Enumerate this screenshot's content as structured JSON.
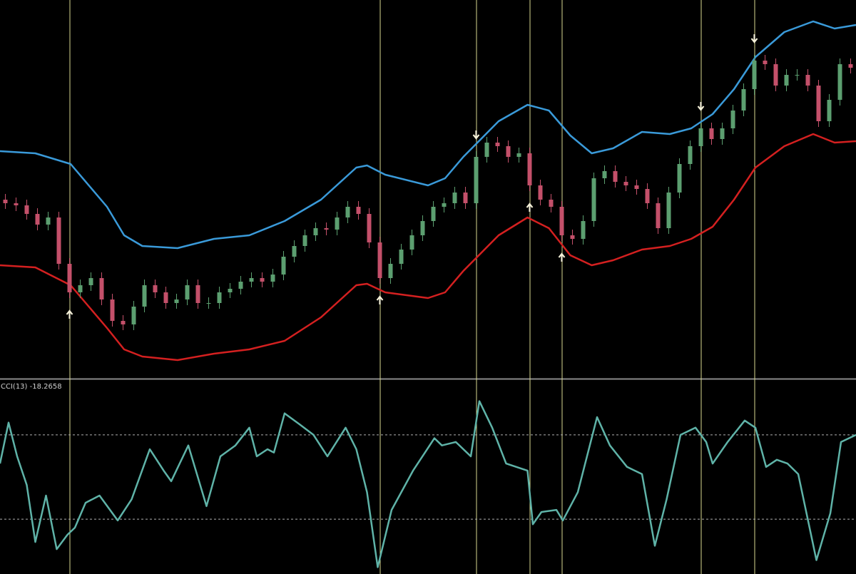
{
  "chart_data": [
    {
      "type": "candlestick",
      "xlim": [
        -0.5,
        79.5
      ],
      "ylim": [
        0,
        530
      ],
      "up_color": "#5c9f70",
      "down_color": "#c4506a",
      "open": [
        250,
        245,
        242,
        230,
        215,
        225,
        160,
        120,
        130,
        140,
        110,
        80,
        75,
        100,
        130,
        120,
        105,
        110,
        130,
        105,
        105,
        120,
        125,
        135,
        140,
        135,
        145,
        170,
        185,
        200,
        210,
        208,
        225,
        240,
        230,
        190,
        140,
        160,
        180,
        200,
        220,
        240,
        245,
        260,
        245,
        310,
        330,
        325,
        310,
        315,
        270,
        250,
        240,
        200,
        195,
        220,
        280,
        290,
        275,
        270,
        265,
        245,
        210,
        260,
        300,
        325,
        350,
        335,
        350,
        375,
        405,
        445,
        440,
        410,
        425,
        425,
        410,
        360,
        390,
        440
      ],
      "high": [
        258,
        253,
        250,
        238,
        233,
        233,
        168,
        138,
        148,
        148,
        118,
        88,
        108,
        138,
        138,
        128,
        118,
        138,
        138,
        113,
        128,
        133,
        143,
        148,
        148,
        153,
        178,
        193,
        208,
        218,
        218,
        233,
        248,
        248,
        238,
        198,
        168,
        188,
        208,
        228,
        248,
        253,
        268,
        268,
        318,
        338,
        338,
        333,
        323,
        323,
        278,
        258,
        248,
        208,
        228,
        288,
        298,
        298,
        283,
        278,
        273,
        253,
        268,
        308,
        333,
        358,
        358,
        358,
        383,
        413,
        453,
        453,
        448,
        433,
        433,
        433,
        418,
        398,
        448,
        448
      ],
      "low": [
        237,
        234,
        222,
        207,
        207,
        152,
        112,
        112,
        122,
        102,
        72,
        67,
        67,
        92,
        112,
        97,
        97,
        102,
        97,
        97,
        97,
        112,
        117,
        127,
        127,
        127,
        137,
        162,
        177,
        192,
        200,
        200,
        217,
        222,
        182,
        132,
        132,
        152,
        172,
        192,
        212,
        232,
        237,
        237,
        237,
        302,
        317,
        302,
        302,
        262,
        242,
        232,
        192,
        187,
        187,
        212,
        272,
        267,
        262,
        257,
        237,
        202,
        202,
        252,
        292,
        317,
        327,
        327,
        342,
        367,
        397,
        432,
        402,
        402,
        417,
        402,
        352,
        352,
        382,
        427
      ],
      "close": [
        245,
        242,
        230,
        215,
        225,
        160,
        120,
        130,
        140,
        110,
        80,
        75,
        100,
        130,
        120,
        105,
        110,
        130,
        105,
        105,
        120,
        125,
        135,
        140,
        135,
        145,
        170,
        185,
        200,
        210,
        208,
        225,
        240,
        230,
        190,
        140,
        160,
        180,
        200,
        220,
        240,
        245,
        260,
        245,
        310,
        330,
        325,
        310,
        315,
        270,
        250,
        240,
        200,
        195,
        220,
        280,
        290,
        275,
        270,
        265,
        245,
        210,
        260,
        300,
        325,
        350,
        335,
        350,
        375,
        405,
        445,
        440,
        410,
        425,
        425,
        410,
        360,
        390,
        440,
        435
      ],
      "lines": [
        {
          "color": "#3a9ad9",
          "x": [
            -0.5,
            2.8,
            6.1,
            9.5,
            11.1,
            12.8,
            16.1,
            19.5,
            22.8,
            26.1,
            29.5,
            32.8,
            33.8,
            35.5,
            39.5,
            41.1,
            42.8,
            46.1,
            48.8,
            50.8,
            52.8,
            54.8,
            56.8,
            59.5,
            62.1,
            64.1,
            66.1,
            68.1,
            70.1,
            72.8,
            75.5,
            77.5,
            79.5
          ],
          "values": [
            318,
            315,
            300,
            240,
            200,
            185,
            182,
            195,
            200,
            220,
            250,
            295,
            298,
            285,
            270,
            280,
            310,
            360,
            383,
            375,
            340,
            315,
            322,
            345,
            342,
            350,
            370,
            405,
            450,
            485,
            500,
            490,
            495
          ]
        },
        {
          "color": "#d42020",
          "x": [
            -0.5,
            2.8,
            6.1,
            9.5,
            11.1,
            12.8,
            16.1,
            19.5,
            22.8,
            26.1,
            29.5,
            32.8,
            33.8,
            35.5,
            39.5,
            41.1,
            42.8,
            46.1,
            48.8,
            50.8,
            52.8,
            54.8,
            56.8,
            59.5,
            62.1,
            64.1,
            66.1,
            68.1,
            70.1,
            72.8,
            75.5,
            77.5,
            79.5
          ],
          "values": [
            158,
            155,
            130,
            70,
            40,
            30,
            25,
            34,
            40,
            52,
            85,
            130,
            132,
            120,
            112,
            120,
            150,
            200,
            225,
            210,
            172,
            158,
            165,
            180,
            185,
            195,
            212,
            250,
            295,
            325,
            342,
            330,
            332
          ]
        }
      ],
      "signals": {
        "color": "#d8d890",
        "arrow_color": "#f4f0d8",
        "index": [
          6,
          35,
          44,
          49,
          52,
          65,
          70
        ],
        "direction": [
          "up",
          "up",
          "down",
          "up",
          "up",
          "down",
          "down"
        ]
      }
    },
    {
      "type": "line",
      "title": "CCI(13)",
      "current_value": -18.2658,
      "xlim": [
        -0.5,
        79.5
      ],
      "ylim": [
        -230,
        230
      ],
      "levels": [
        100,
        -100
      ],
      "series": [
        {
          "color": "#5fb3a8",
          "x": [
            -0.5,
            0.3,
            1.1,
            2,
            2.8,
            3.8,
            4.8,
            5.8,
            6.5,
            7.5,
            8.8,
            10.5,
            11.8,
            13.5,
            14.8,
            15.5,
            17.1,
            18.8,
            20.1,
            21.5,
            22.8,
            23.5,
            24.5,
            25.1,
            26.1,
            27.5,
            28.8,
            30.1,
            31.8,
            32.8,
            33.8,
            34.8,
            36.1,
            38.1,
            40.1,
            40.8,
            42.1,
            43.5,
            44.3,
            45.5,
            46.8,
            48.8,
            49.3,
            50.1,
            51.5,
            52.1,
            53.5,
            55.3,
            56.5,
            58.1,
            59.5,
            60.7,
            61.8,
            63.1,
            64.5,
            65.5,
            66.1,
            67.5,
            69.1,
            70.1,
            71.1,
            72.1,
            73.1,
            74.1,
            75.8,
            77.1,
            78.1,
            79.5
          ],
          "values": [
            32,
            129,
            49,
            -19,
            -154,
            -44,
            -171,
            -137,
            -120,
            -61,
            -44,
            -103,
            -53,
            66,
            15,
            -10,
            75,
            -69,
            49,
            75,
            117,
            49,
            66,
            58,
            151,
            125,
            100,
            49,
            117,
            66,
            -36,
            -214,
            -78,
            15,
            92,
            75,
            83,
            49,
            180,
            117,
            32,
            15,
            -112,
            -83,
            -78,
            -103,
            -36,
            142,
            75,
            24,
            7,
            -163,
            -53,
            100,
            117,
            83,
            32,
            83,
            134,
            117,
            24,
            41,
            32,
            7,
            -197,
            -86,
            83,
            100
          ]
        }
      ]
    }
  ]
}
